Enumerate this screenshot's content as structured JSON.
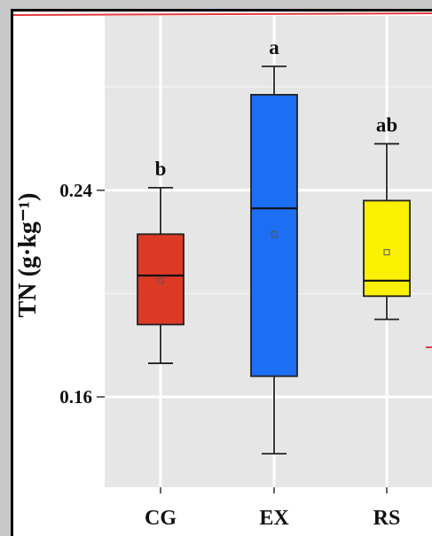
{
  "chart_data": {
    "type": "boxplot",
    "ylabel": "TN (g·kg⁻¹)",
    "ylim": [
      0.125,
      0.3075
    ],
    "yticks": [
      0.16,
      0.24
    ],
    "ytick_labels": [
      "0.16",
      "0.24"
    ],
    "grid": true,
    "categories": [
      "CG",
      "EX",
      "RS"
    ],
    "boxes": [
      {
        "category": "CG",
        "whisker_low": 0.173,
        "q1": 0.188,
        "median": 0.207,
        "q3": 0.223,
        "whisker_high": 0.241,
        "mean": 0.205,
        "color": "#dd3a26",
        "significance": "b"
      },
      {
        "category": "EX",
        "whisker_low": 0.138,
        "q1": 0.168,
        "median": 0.233,
        "q3": 0.277,
        "whisker_high": 0.288,
        "mean": 0.223,
        "color": "#1c6ef2",
        "significance": "a"
      },
      {
        "category": "RS",
        "whisker_low": 0.19,
        "q1": 0.199,
        "median": 0.205,
        "q3": 0.236,
        "whisker_high": 0.258,
        "mean": 0.216,
        "color": "#fcf003",
        "significance": "ab"
      }
    ]
  }
}
